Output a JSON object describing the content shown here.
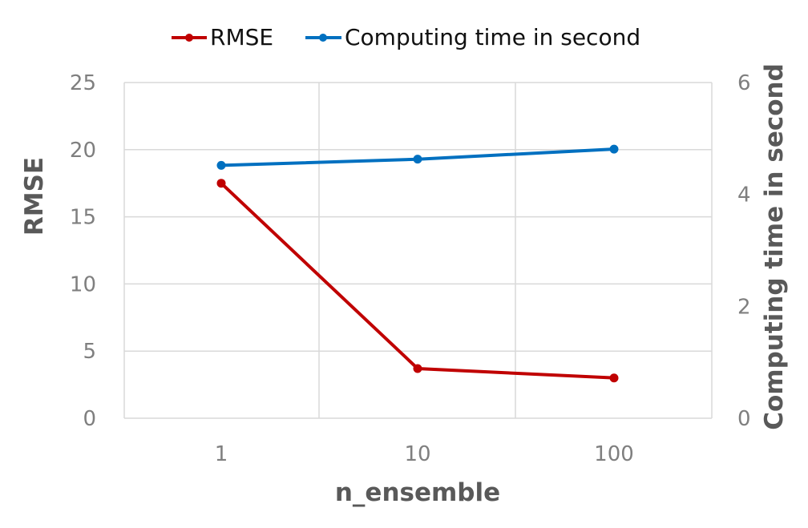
{
  "chart_data": {
    "type": "line",
    "categories": [
      "1",
      "10",
      "100"
    ],
    "xlabel": "n_ensemble",
    "ylabel": "RMSE",
    "y2label": "Computing time in second",
    "ylim": [
      0,
      25
    ],
    "y2lim": [
      0,
      6
    ],
    "yticks": [
      "0",
      "5",
      "10",
      "15",
      "20",
      "25"
    ],
    "y2ticks": [
      "0",
      "2",
      "4",
      "6"
    ],
    "grid": true,
    "legend_position": "top-center",
    "series": [
      {
        "name": "RMSE",
        "values": [
          17.5,
          3.7,
          3.0
        ],
        "axis": "left",
        "color": "#c00000"
      },
      {
        "name": "Computing time in second",
        "values": [
          4.52,
          4.63,
          4.81
        ],
        "axis": "right",
        "color": "#0070c0"
      }
    ]
  }
}
